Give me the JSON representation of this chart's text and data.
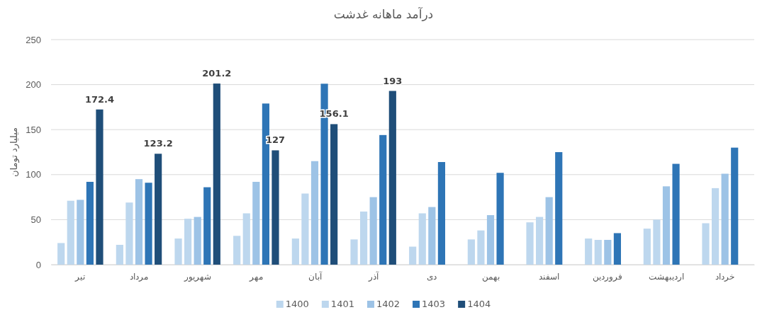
{
  "chart_data": {
    "type": "bar",
    "title": "درآمد ماهانه غدشت",
    "ylabel": "میلیارد تومان",
    "categories": [
      "تیر",
      "مرداد",
      "شهریور",
      "مهر",
      "آبان",
      "آذر",
      "دی",
      "بهمن",
      "اسفند",
      "فروردین",
      "اردیبهشت",
      "خرداد"
    ],
    "series": [
      {
        "name": "1400",
        "color": "#bdd7ee",
        "values": [
          24,
          22,
          29,
          32,
          29,
          28,
          20,
          28,
          47,
          29,
          40,
          46
        ]
      },
      {
        "name": "1401",
        "color": "#bdd7ee",
        "values": [
          71,
          69,
          51,
          57,
          79,
          59,
          57,
          38,
          53,
          27.5,
          50,
          85
        ]
      },
      {
        "name": "1402",
        "color": "#9dc3e6",
        "values": [
          72,
          95,
          53,
          92,
          115,
          75,
          64,
          55,
          75,
          27.5,
          87,
          101
        ]
      },
      {
        "name": "1403",
        "color": "#2e75b6",
        "values": [
          92,
          91,
          86,
          179,
          201,
          144,
          114,
          102,
          125,
          35,
          112,
          130
        ]
      },
      {
        "name": "1404",
        "color": "#1f4e79",
        "values": [
          172.4,
          123.2,
          201.2,
          127,
          156.1,
          193,
          null,
          null,
          null,
          null,
          null,
          null
        ],
        "value_labels": [
          "172.4",
          "123.2",
          "201.2",
          "127",
          "156.1",
          "193",
          null,
          null,
          null,
          null,
          null,
          null
        ]
      }
    ],
    "ylim": [
      0,
      250
    ],
    "yticks": [
      0,
      50,
      100,
      150,
      200,
      250
    ],
    "grid": "y",
    "legend": "bottom"
  }
}
